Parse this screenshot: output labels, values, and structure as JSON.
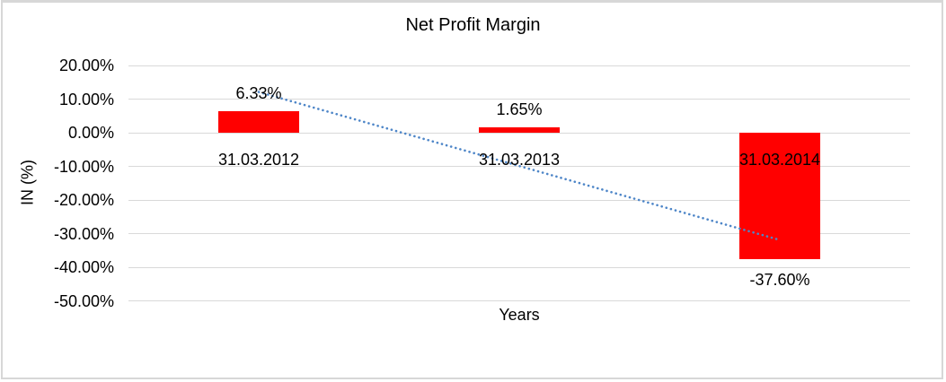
{
  "chart_data": {
    "type": "bar",
    "title": "Net Profit Margin",
    "xlabel": "Years",
    "ylabel": "IN (%)",
    "categories": [
      "31.03.2012",
      "31.03.2013",
      "31.03.2014"
    ],
    "values": [
      6.33,
      1.65,
      -37.6
    ],
    "data_labels": [
      "6.33%",
      "1.65%",
      "-37.60%"
    ],
    "ylim": [
      -50,
      20
    ],
    "ytick_step": 10,
    "ytick_labels": [
      "20.00%",
      "10.00%",
      "0.00%",
      "-10.00%",
      "-20.00%",
      "-30.00%",
      "-40.00%",
      "-50.00%"
    ],
    "grid": true,
    "legend_position": "none",
    "colors": {
      "bar": "#ff0000",
      "trendline": "#4e86c8",
      "gridline": "#d9d9d9",
      "text": "#000000",
      "frame": "#d7d7d7"
    },
    "trendline": {
      "kind": "linear",
      "style": "dotted",
      "start_value": 12.1,
      "end_value": -31.9
    }
  }
}
